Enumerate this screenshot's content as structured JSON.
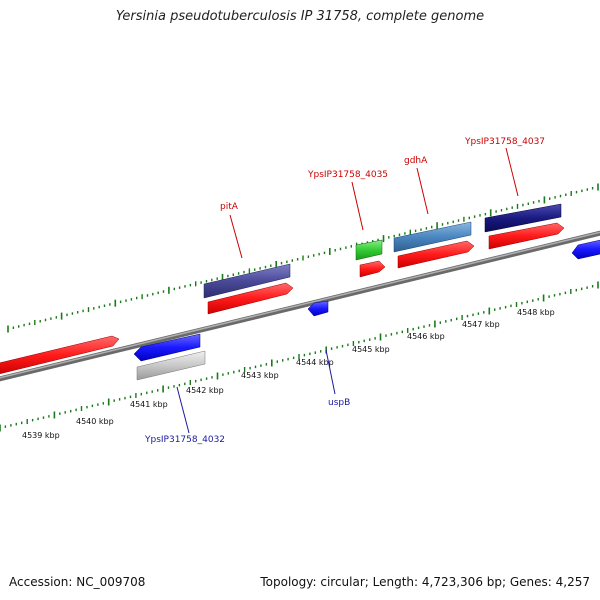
{
  "title": "Yersinia pseudotuberculosis IP 31758, complete genome",
  "footer": {
    "accession": "Accession: NC_009708",
    "summary": "Topology: circular; Length: 4,723,306 bp; Genes: 4,257"
  },
  "scale_labels": [
    "4539 kbp",
    "4540 kbp",
    "4541 kbp",
    "4542 kbp",
    "4543 kbp",
    "4544 kbp",
    "4545 kbp",
    "4546 kbp",
    "4547 kbp",
    "4548 kbp"
  ],
  "gene_labels": [
    {
      "text": "pitA",
      "color": "#cc0000"
    },
    {
      "text": "YpsIP31758_4035",
      "color": "#cc0000"
    },
    {
      "text": "gdhA",
      "color": "#cc0000"
    },
    {
      "text": "YpsIP31758_4037",
      "color": "#cc0000"
    },
    {
      "text": "uspB",
      "color": "#1a1aa0"
    },
    {
      "text": "YpsIP31758_4032",
      "color": "#1a1aa0"
    }
  ],
  "colors": {
    "cds_forward": "#ff1a1a",
    "cds_reverse": "#1a1aff",
    "gene_dark_blue": "#1a1a80",
    "gene_slate": "#4a4a99",
    "gene_steel": "#4a86c0",
    "gene_green": "#33cc33",
    "gene_gray": "#c8c8c8",
    "backbone": "#888888",
    "tick_green": "#1a7a1a"
  }
}
